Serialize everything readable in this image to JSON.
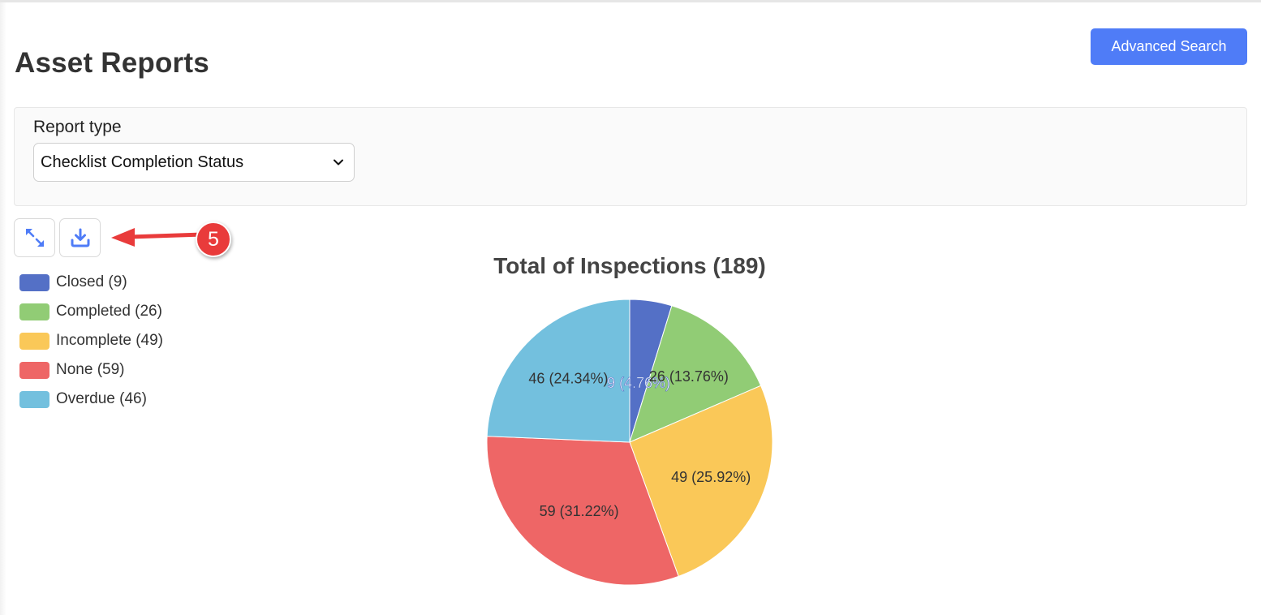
{
  "page": {
    "title": "Asset Reports",
    "advanced_search_label": "Advanced Search"
  },
  "filters": {
    "report_type_label": "Report type",
    "report_type_value": "Checklist Completion Status"
  },
  "toolbar": {
    "icons": [
      "expand-icon",
      "download-icon"
    ]
  },
  "annotation": {
    "number": "5",
    "color": "#e93b3b"
  },
  "legend": {
    "items": [
      {
        "label": "Closed (9)",
        "color": "#5470c6"
      },
      {
        "label": "Completed (26)",
        "color": "#91cc75"
      },
      {
        "label": "Incomplete (49)",
        "color": "#fac858"
      },
      {
        "label": "None (59)",
        "color": "#ee6666"
      },
      {
        "label": "Overdue (46)",
        "color": "#73c0de"
      }
    ]
  },
  "chart_data": {
    "type": "pie",
    "title": "Total of Inspections (189)",
    "categories": [
      "Closed",
      "Completed",
      "Incomplete",
      "None",
      "Overdue"
    ],
    "values": [
      9,
      26,
      49,
      59,
      46
    ],
    "labels": [
      "9 (4.76%)",
      "26 (13.76%)",
      "49 (25.92%)",
      "59 (31.22%)",
      "46 (24.34%)"
    ],
    "colors": [
      "#5470c6",
      "#91cc75",
      "#fac858",
      "#ee6666",
      "#73c0de"
    ],
    "legend_position": "top-left"
  }
}
